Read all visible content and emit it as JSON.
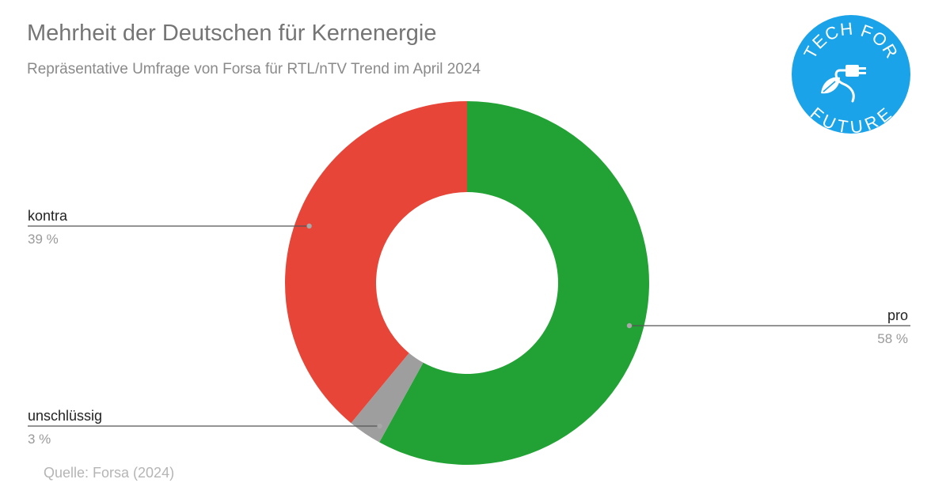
{
  "header": {
    "title": "Mehrheit der Deutschen für Kernenergie",
    "subtitle": "Repräsentative Umfrage von Forsa für RTL/nTV Trend im April 2024"
  },
  "footer": {
    "source": "Quelle: Forsa (2024)"
  },
  "logo": {
    "text_top": "TECH FOR",
    "text_bottom": "FUTURE",
    "color": "#1aa3e8",
    "icon": "plug-leaf-icon"
  },
  "chart_data": {
    "type": "pie",
    "variant": "donut",
    "title": "Mehrheit der Deutschen für Kernenergie",
    "subtitle": "Repräsentative Umfrage von Forsa für RTL/nTV Trend im April 2024",
    "unit": "%",
    "slices": [
      {
        "label": "pro",
        "value": 58,
        "value_label": "58 %",
        "color": "#22a234"
      },
      {
        "label": "unschlüssig",
        "value": 3,
        "value_label": "3 %",
        "color": "#9e9e9e"
      },
      {
        "label": "kontra",
        "value": 39,
        "value_label": "39 %",
        "color": "#e64537"
      }
    ],
    "start_angle_deg": 0,
    "direction": "clockwise",
    "legend": "none",
    "labels": "outside with leader lines"
  }
}
